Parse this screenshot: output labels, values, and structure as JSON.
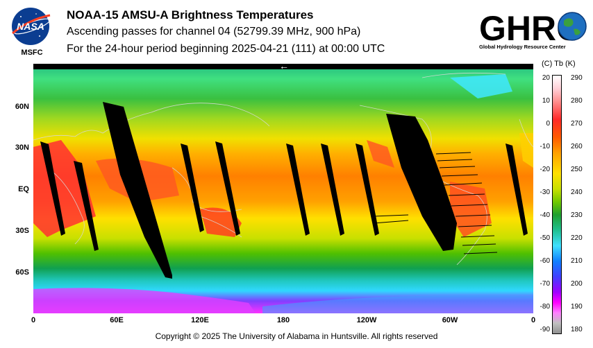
{
  "header": {
    "title": "NOAA-15 AMSU-A Brightness Temperatures",
    "subtitle1": "Ascending passes for channel 04 (52799.39 MHz, 900 hPa)",
    "subtitle2": "For the 24-hour period beginning 2025-04-21 (111) at 00:00 UTC"
  },
  "logos": {
    "nasa_text": "NASA",
    "nasa_sub": "MSFC",
    "ghrc_text": "GHRC",
    "ghrc_sub": "Global Hydrology Resource Center"
  },
  "map": {
    "lat_labels": [
      "60N",
      "30N",
      "EQ",
      "30S",
      "60S"
    ],
    "lon_labels": [
      "0",
      "60E",
      "120E",
      "180",
      "120W",
      "60W",
      "0"
    ],
    "arrow_glyph": "←"
  },
  "colorbar": {
    "header": "(C)  Tb  (K)",
    "celsius_ticks": [
      "20",
      "10",
      "0",
      "-10",
      "-20",
      "-30",
      "-40",
      "-50",
      "-60",
      "-70",
      "-80",
      "-90"
    ],
    "kelvin_ticks": [
      "290",
      "280",
      "270",
      "260",
      "250",
      "240",
      "230",
      "220",
      "210",
      "200",
      "190",
      "180"
    ]
  },
  "footer": {
    "copyright": "Copyright © 2025 The University of Alabama in Huntsville.  All rights reserved"
  }
}
